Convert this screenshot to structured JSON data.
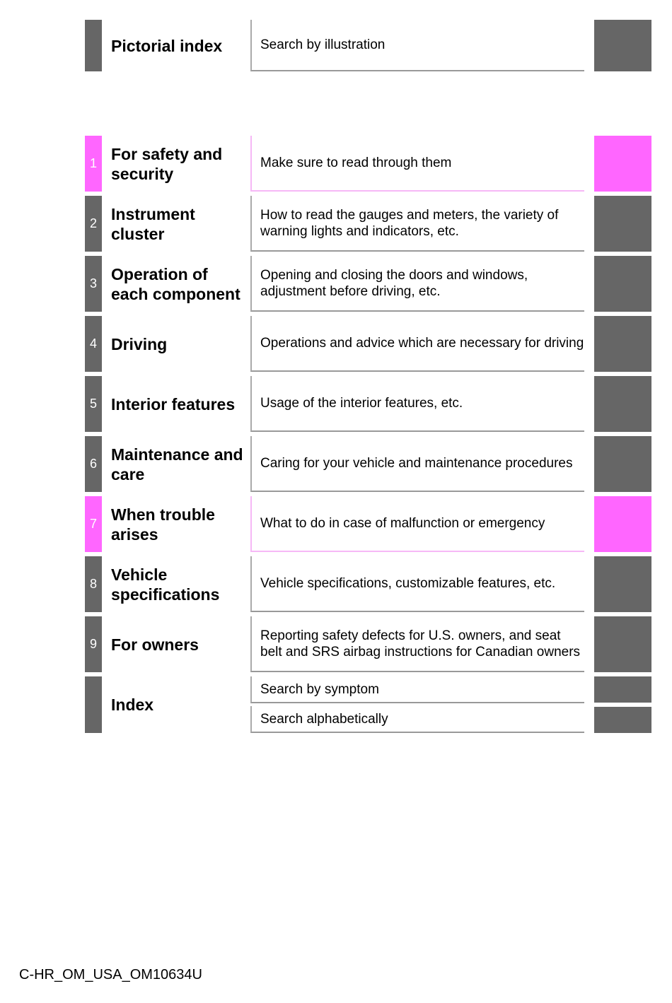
{
  "colors": {
    "gray": "#666666",
    "pink": "#ff66ff"
  },
  "pictorial": {
    "title": "Pictorial index",
    "desc": "Search by illustration"
  },
  "chapters": [
    {
      "num": "1",
      "title": "For safety and security",
      "desc": "Make sure to read through them",
      "color": "pink"
    },
    {
      "num": "2",
      "title": "Instrument cluster",
      "desc": "How to read the gauges and meters, the variety of warning lights and indicators, etc.",
      "color": "gray"
    },
    {
      "num": "3",
      "title": "Operation of each component",
      "desc": "Opening and closing the doors and windows, adjustment before driving, etc.",
      "color": "gray"
    },
    {
      "num": "4",
      "title": "Driving",
      "desc": "Operations and advice which are necessary for driving",
      "color": "gray"
    },
    {
      "num": "5",
      "title": "Interior features",
      "desc": "Usage of the interior features, etc.",
      "color": "gray"
    },
    {
      "num": "6",
      "title": "Maintenance and care",
      "desc": "Caring for your vehicle and maintenance procedures",
      "color": "gray"
    },
    {
      "num": "7",
      "title": "When trouble arises",
      "desc": "What to do in case of malfunction or emergency",
      "color": "pink"
    },
    {
      "num": "8",
      "title": "Vehicle specifications",
      "desc": "Vehicle specifications, customizable features, etc.",
      "color": "gray"
    },
    {
      "num": "9",
      "title": "For owners",
      "desc": "Reporting safety defects for U.S. owners, and seat belt and SRS airbag instructions for Canadian owners",
      "color": "gray"
    }
  ],
  "index": {
    "title": "Index",
    "items": [
      "Search by symptom",
      "Search alphabetically"
    ]
  },
  "footer": "C-HR_OM_USA_OM10634U"
}
